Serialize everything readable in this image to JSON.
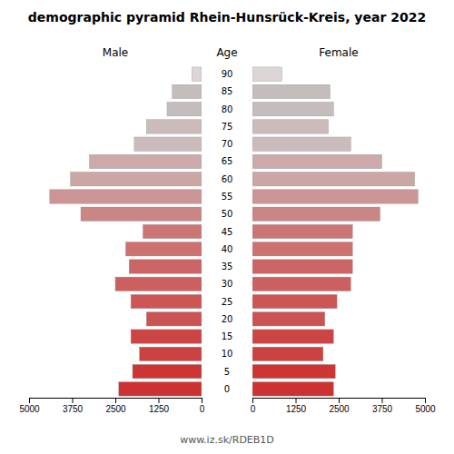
{
  "chart_data": {
    "type": "bar",
    "orientation": "horizontal",
    "title": "demographic pyramid Rhein-Hunsrück-Kreis, year 2022",
    "subtitle": "www.iz.sk/RDEB1D",
    "ylabel": "Age",
    "categories": [
      "0",
      "5",
      "10",
      "15",
      "20",
      "25",
      "30",
      "35",
      "40",
      "45",
      "50",
      "55",
      "60",
      "65",
      "70",
      "75",
      "80",
      "85",
      "90"
    ],
    "series": [
      {
        "name": "Male",
        "values": [
          2400,
          2000,
          1800,
          2050,
          1600,
          2050,
          2500,
          2100,
          2200,
          1700,
          3500,
          4400,
          3800,
          3250,
          1950,
          1600,
          1000,
          850,
          280
        ]
      },
      {
        "name": "Female",
        "values": [
          2350,
          2400,
          2050,
          2350,
          2100,
          2450,
          2850,
          2900,
          2900,
          2900,
          3700,
          4800,
          4700,
          3750,
          2850,
          2200,
          2350,
          2250,
          850
        ]
      }
    ],
    "colors": [
      "#cd3232",
      "#cd3434",
      "#cc4242",
      "#cc4545",
      "#cc5353",
      "#cc5555",
      "#cc6060",
      "#cc6565",
      "#cc7070",
      "#cc7575",
      "#cc8585",
      "#cc9595",
      "#cca5a5",
      "#ccaaaa",
      "#ccbbbb",
      "#ccbbbb",
      "#c5bcbc",
      "#c5bcbc",
      "#ddd5d5"
    ],
    "xlim": [
      0,
      5000
    ],
    "xticks": [
      0,
      1250,
      2500,
      3750,
      5000
    ]
  }
}
